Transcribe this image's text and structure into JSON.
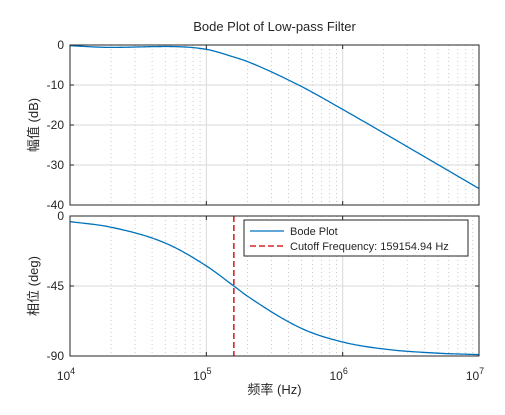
{
  "chart_data": [
    {
      "type": "line",
      "title": "Bode Plot of Low-pass Filter",
      "xlabel": "",
      "ylabel": "幅值 (dB)",
      "xscale": "log",
      "xlim": [
        10000,
        10000000
      ],
      "ylim": [
        -40,
        0
      ],
      "yticks": [
        "0",
        "-10",
        "-20",
        "-30",
        "-40"
      ],
      "grid": "major solid, minor dotted (x)",
      "series": [
        {
          "color": "#0072BD",
          "x": [
            10000,
            20000,
            50000,
            100000,
            159154.94,
            200000,
            500000,
            1000000,
            2000000,
            5000000,
            10000000
          ],
          "y": [
            -0.17,
            -0.6,
            -0.38,
            -1.09,
            -3.01,
            -4.13,
            -10.4,
            -16.1,
            -22.0,
            -29.9,
            -35.9
          ]
        }
      ]
    },
    {
      "type": "line",
      "xlabel": "频率 (Hz)",
      "ylabel": "相位 (deg)",
      "xscale": "log",
      "xlim": [
        10000,
        10000000
      ],
      "ylim": [
        -90,
        0
      ],
      "yticks": [
        "0",
        "-45",
        "-90"
      ],
      "xticks": [
        "10^4",
        "10^5",
        "10^6",
        "10^7"
      ],
      "grid": "major solid, minor dotted (x)",
      "legend": {
        "position": "top-right"
      },
      "series": [
        {
          "name": "Bode Plot",
          "color": "#0072BD",
          "style": "solid",
          "x": [
            10000,
            20000,
            50000,
            100000,
            159154.94,
            200000,
            500000,
            1000000,
            2000000,
            5000000,
            10000000
          ],
          "y": [
            -3.6,
            -7.2,
            -17.4,
            -32.1,
            -45.0,
            -51.5,
            -72.3,
            -81.0,
            -85.5,
            -88.2,
            -89.1
          ]
        },
        {
          "name": "Cutoff Frequency: 159154.94 Hz",
          "color": "#D62728",
          "style": "dashed",
          "x": [
            159154.94,
            159154.94
          ],
          "y": [
            0,
            -90
          ]
        }
      ]
    }
  ]
}
